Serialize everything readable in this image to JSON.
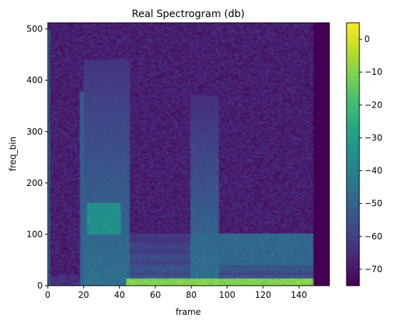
{
  "chart_data": {
    "type": "heatmap",
    "title": "Real Spectrogram (db)",
    "xlabel": "frame",
    "ylabel": "freq_bin",
    "xlim": [
      0,
      157
    ],
    "ylim": [
      0,
      512
    ],
    "x_ticks": [
      0,
      20,
      40,
      60,
      80,
      100,
      120,
      140
    ],
    "y_ticks": [
      0,
      100,
      200,
      300,
      400,
      500
    ],
    "colorbar": {
      "vmin": -75,
      "vmax": 5,
      "ticks": [
        0,
        -10,
        -20,
        -30,
        -40,
        -50,
        -60,
        -70
      ],
      "colormap": "viridis"
    },
    "active_frames": [
      0,
      148
    ],
    "background_db": -68,
    "features": [
      {
        "desc": "low harmonic bands",
        "frames": [
          18,
          148
        ],
        "bins": [
          0,
          100
        ],
        "level_db": -50
      },
      {
        "desc": "strong fundamental band",
        "frames": [
          44,
          148
        ],
        "bins": [
          0,
          12
        ],
        "level_db": -10
      },
      {
        "desc": "broad burst",
        "frames": [
          20,
          45
        ],
        "bins": [
          0,
          440
        ],
        "level_db": -45
      },
      {
        "desc": "high-energy region",
        "frames": [
          22,
          40
        ],
        "bins": [
          100,
          160
        ],
        "level_db": -35
      },
      {
        "desc": "second onset",
        "frames": [
          80,
          95
        ],
        "bins": [
          0,
          370
        ],
        "level_db": -45
      },
      {
        "desc": "mid band continuation",
        "frames": [
          80,
          148
        ],
        "bins": [
          40,
          100
        ],
        "level_db": -48
      }
    ],
    "grid": false
  }
}
